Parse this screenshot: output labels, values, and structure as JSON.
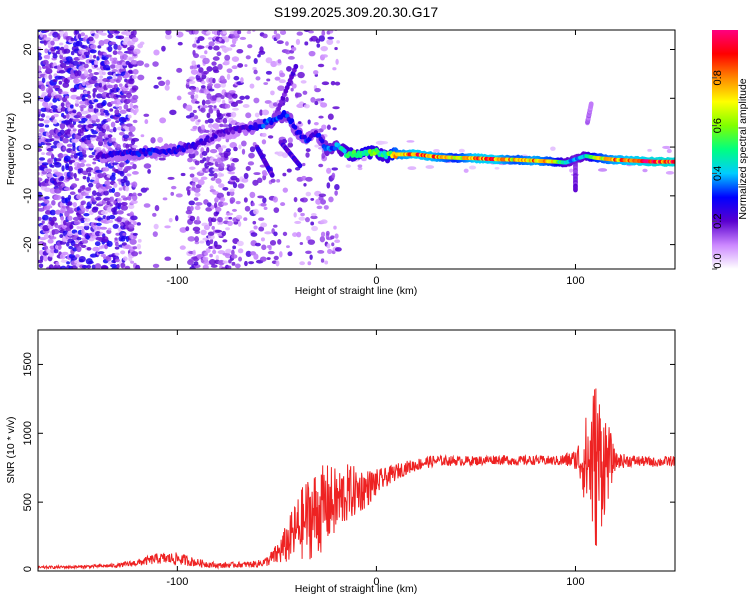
{
  "title": "S199.2025.309.20.30.G17",
  "chart_data": [
    {
      "type": "heatmap",
      "xlabel": "Height of straight line (km)",
      "ylabel": "Frequency (Hz)",
      "xlim": [
        -170,
        150
      ],
      "ylim": [
        -25,
        24
      ],
      "x_ticks": [
        -100,
        0,
        100
      ],
      "x_tick_labels": [
        "-100",
        "0",
        "100"
      ],
      "y_ticks": [
        -20,
        -10,
        0,
        10,
        20
      ],
      "y_tick_labels": [
        "-20",
        "-10",
        "0",
        "10",
        "20"
      ],
      "colorbar": {
        "label": "Normalized spectral amplitude",
        "range": [
          0,
          1
        ],
        "ticks": [
          0,
          0.2,
          0.4,
          0.6,
          0.8
        ],
        "tick_labels": [
          "0.0",
          "0.2",
          "0.4",
          "0.6",
          "0.8"
        ],
        "colors": [
          "#ffffff",
          "#cc88ff",
          "#5a00d0",
          "#0000ff",
          "#00ccff",
          "#00ff80",
          "#80ff00",
          "#ffff00",
          "#ff8800",
          "#ff0000",
          "#ff0080"
        ]
      },
      "ridge_track": {
        "x": [
          -140,
          -130,
          -120,
          -110,
          -100,
          -90,
          -80,
          -70,
          -60,
          -55,
          -50,
          -45,
          -40,
          -35,
          -30,
          -25,
          -20,
          -15,
          -10,
          -5,
          0,
          5,
          10,
          20,
          30,
          40,
          50,
          60,
          70,
          80,
          90,
          95,
          100,
          105,
          110,
          120,
          130,
          140,
          150
        ],
        "freq_hz": [
          -1.8,
          -1.5,
          -1.2,
          -0.9,
          -0.5,
          0.5,
          2.5,
          3.5,
          4.2,
          5.0,
          5.8,
          7.0,
          3.0,
          1.5,
          3.0,
          -0.5,
          0.3,
          -1.3,
          -1.5,
          -1.3,
          -1.0,
          -1.8,
          -1.5,
          -1.5,
          -2.0,
          -2.2,
          -2.3,
          -2.5,
          -2.6,
          -2.8,
          -3.0,
          -3.2,
          -2.5,
          -1.8,
          -2.2,
          -2.6,
          -2.8,
          -3.0,
          -3.0
        ],
        "amplitude": [
          0.25,
          0.27,
          0.3,
          0.3,
          0.28,
          0.25,
          0.22,
          0.22,
          0.3,
          0.35,
          0.35,
          0.35,
          0.3,
          0.3,
          0.25,
          0.4,
          0.4,
          0.5,
          0.55,
          0.6,
          0.55,
          0.5,
          0.8,
          0.9,
          0.85,
          0.7,
          0.9,
          0.9,
          0.75,
          0.85,
          0.7,
          0.45,
          0.4,
          0.45,
          0.7,
          0.85,
          0.9,
          0.95,
          0.95
        ]
      }
    },
    {
      "type": "line",
      "xlabel": "Height of straight line (km)",
      "ylabel": "SNR (10 * v/v)",
      "xlim": [
        -170,
        150
      ],
      "ylim": [
        0,
        1750
      ],
      "x_ticks": [
        -100,
        0,
        100
      ],
      "x_tick_labels": [
        "-100",
        "0",
        "100"
      ],
      "y_ticks": [
        0,
        500,
        1000,
        1500
      ],
      "y_tick_labels": [
        "0",
        "500",
        "1000",
        "1500"
      ],
      "series": [
        {
          "name": "SNR",
          "color": "#ee2222",
          "x": [
            -170,
            -160,
            -150,
            -140,
            -130,
            -120,
            -110,
            -100,
            -90,
            -80,
            -70,
            -60,
            -55,
            -50,
            -45,
            -40,
            -35,
            -30,
            -25,
            -20,
            -15,
            -10,
            -5,
            0,
            5,
            10,
            15,
            20,
            25,
            30,
            40,
            50,
            60,
            70,
            80,
            90,
            100,
            105,
            110,
            115,
            120,
            130,
            140,
            150
          ],
          "y": [
            25,
            28,
            30,
            35,
            40,
            60,
            90,
            90,
            60,
            40,
            45,
            50,
            70,
            120,
            200,
            300,
            380,
            420,
            480,
            500,
            560,
            580,
            600,
            640,
            680,
            720,
            750,
            770,
            790,
            800,
            800,
            800,
            810,
            800,
            805,
            800,
            810,
            800,
            780,
            800,
            800,
            800,
            790,
            800
          ],
          "spread": [
            10,
            10,
            10,
            12,
            15,
            25,
            40,
            45,
            30,
            20,
            20,
            25,
            35,
            80,
            150,
            230,
            300,
            330,
            300,
            250,
            220,
            180,
            140,
            100,
            70,
            60,
            50,
            45,
            45,
            40,
            35,
            35,
            35,
            35,
            35,
            35,
            70,
            320,
            650,
            380,
            60,
            40,
            35,
            40
          ]
        }
      ]
    }
  ]
}
